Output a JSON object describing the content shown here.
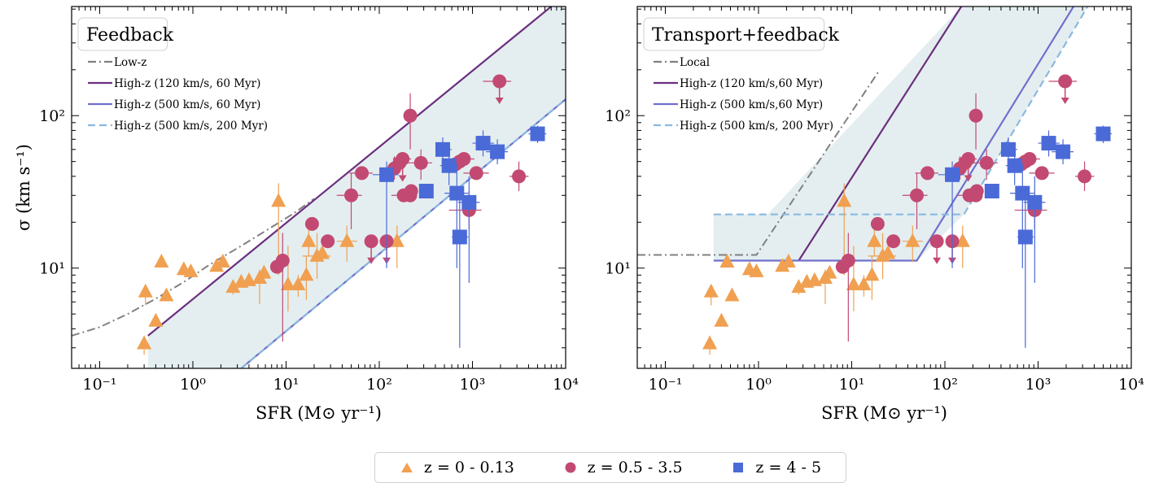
{
  "colors": {
    "low": "#f0a050",
    "mid": "#c24a72",
    "high": "#4a6ad8",
    "gray": "#808080",
    "purple": "#6a2f7e",
    "blue": "#7070cc",
    "lightblue": "#8ab8e0",
    "fill": "#e4eef0"
  },
  "legend": {
    "low": "z = 0 - 0.13",
    "mid": "z = 0.5 - 3.5",
    "high": "z = 4 - 5"
  },
  "chart_data": [
    {
      "type": "scatter",
      "title": "Feedback",
      "xlabel": "SFR (M⊙ yr⁻¹)",
      "ylabel": "σ (km s⁻¹)",
      "xscale": "log",
      "yscale": "log",
      "xlim": [
        0.05,
        10000
      ],
      "ylim": [
        2.2,
        520
      ],
      "xticks": [
        {
          "v": 0.1,
          "label": "10⁻¹"
        },
        {
          "v": 1,
          "label": "10⁰"
        },
        {
          "v": 10,
          "label": "10¹"
        },
        {
          "v": 100,
          "label": "10²"
        },
        {
          "v": 1000,
          "label": "10³"
        },
        {
          "v": 10000,
          "label": "10⁴"
        }
      ],
      "yticks": [
        {
          "v": 10,
          "label": "10¹"
        },
        {
          "v": 100,
          "label": "10²"
        }
      ],
      "legend_entries": [
        {
          "label": "Low-z",
          "style": "dashdot",
          "color": "gray"
        },
        {
          "label": "High-z (120 km/s, 60 Myr)",
          "style": "solid",
          "color": "purple"
        },
        {
          "label": "High-z (500 km/s, 60 Myr)",
          "style": "solid",
          "color": "blue"
        },
        {
          "label": "High-z (500 km/s, 200 Myr)",
          "style": "dashed",
          "color": "lightblue"
        }
      ],
      "models": [
        {
          "color": "gray",
          "style": "dashdot",
          "points": [
            [
              0.05,
              3.6
            ],
            [
              0.1,
              4.1
            ],
            [
              0.2,
              5.0
            ],
            [
              0.4,
              6.3
            ],
            [
              0.8,
              8.1
            ],
            [
              1.5,
              10.5
            ],
            [
              3,
              13.5
            ],
            [
              6,
              17.5
            ],
            [
              12,
              22.8
            ],
            [
              20,
              28.5
            ]
          ]
        },
        {
          "color": "purple",
          "style": "solid",
          "points": [
            [
              0.33,
              3.6
            ],
            [
              7000,
              520
            ]
          ]
        },
        {
          "color": "blue",
          "style": "solid",
          "points": [
            [
              3.3,
              2.2
            ],
            [
              10000,
              128
            ]
          ]
        },
        {
          "color": "lightblue",
          "style": "dashed",
          "points": [
            [
              3.3,
              2.2
            ],
            [
              10000,
              128
            ]
          ]
        }
      ],
      "shade": [
        [
          0.33,
          2.2
        ],
        [
          0.33,
          3.6
        ],
        [
          7000,
          520
        ],
        [
          10000,
          520
        ],
        [
          10000,
          128
        ],
        [
          3.3,
          2.2
        ]
      ]
    },
    {
      "type": "scatter",
      "title": "Transport+feedback",
      "xlabel": "SFR (M⊙ yr⁻¹)",
      "ylabel": "",
      "xscale": "log",
      "yscale": "log",
      "xlim": [
        0.05,
        10000
      ],
      "ylim": [
        2.2,
        520
      ],
      "xticks": [
        {
          "v": 0.1,
          "label": "10⁻¹"
        },
        {
          "v": 1,
          "label": "10⁰"
        },
        {
          "v": 10,
          "label": "10¹"
        },
        {
          "v": 100,
          "label": "10²"
        },
        {
          "v": 1000,
          "label": "10³"
        },
        {
          "v": 10000,
          "label": "10⁴"
        }
      ],
      "yticks": [
        {
          "v": 10,
          "label": "10¹"
        },
        {
          "v": 100,
          "label": "10²"
        }
      ],
      "legend_entries": [
        {
          "label": "Local",
          "style": "dashdot",
          "color": "gray"
        },
        {
          "label": "High-z (120 km/s,60 Myr)",
          "style": "solid",
          "color": "purple"
        },
        {
          "label": "High-z (500 km/s,60 Myr)",
          "style": "solid",
          "color": "blue"
        },
        {
          "label": "High-z (500 km/s, 200 Myr)",
          "style": "dashed",
          "color": "lightblue"
        }
      ],
      "models": [
        {
          "color": "gray",
          "style": "dashdot",
          "points": [
            [
              0.05,
              12.2
            ],
            [
              0.95,
              12.2
            ],
            [
              20,
              200
            ]
          ]
        },
        {
          "color": "purple",
          "style": "solid",
          "points": [
            [
              2.7,
              11.2
            ],
            [
              150,
              520
            ]
          ]
        },
        {
          "color": "blue",
          "style": "solid",
          "points": [
            [
              0.33,
              11.2
            ],
            [
              50,
              11.2
            ],
            [
              2400,
              520
            ]
          ]
        },
        {
          "color": "lightblue",
          "style": "dashed",
          "points": [
            [
              0.33,
              22.5
            ],
            [
              160,
              22.5
            ],
            [
              3400,
              520
            ]
          ]
        }
      ],
      "shade": [
        [
          0.33,
          11.2
        ],
        [
          0.33,
          22.5
        ],
        [
          1.25,
          22.5
        ],
        [
          150,
          520
        ],
        [
          3400,
          520
        ],
        [
          160,
          22.5
        ],
        [
          50,
          11.2
        ]
      ]
    }
  ],
  "points": {
    "low": [
      {
        "x": 0.3,
        "y": 3.2,
        "yerr": [
          2.7,
          3.6
        ]
      },
      {
        "x": 0.31,
        "y": 7.0,
        "yerr": [
          5.7,
          7.6
        ]
      },
      {
        "x": 0.4,
        "y": 4.5
      },
      {
        "x": 0.46,
        "y": 11.0
      },
      {
        "x": 0.52,
        "y": 6.6
      },
      {
        "x": 0.8,
        "y": 9.8
      },
      {
        "x": 0.95,
        "y": 9.5
      },
      {
        "x": 1.8,
        "y": 10.3
      },
      {
        "x": 2.1,
        "y": 11.0
      },
      {
        "x": 2.7,
        "y": 7.5,
        "yerr": [
          6.7,
          8.4
        ]
      },
      {
        "x": 3.3,
        "y": 8.1
      },
      {
        "x": 4.0,
        "y": 8.3
      },
      {
        "x": 5.2,
        "y": 8.6,
        "yerr": [
          5.8,
          9.8
        ]
      },
      {
        "x": 5.8,
        "y": 9.3
      },
      {
        "x": 8.3,
        "y": 27.5,
        "yerr": [
          9,
          36
        ]
      },
      {
        "x": 10.5,
        "y": 7.8,
        "yerr": [
          5.2,
          14
        ]
      },
      {
        "x": 13.5,
        "y": 7.8,
        "yerr": [
          6.5,
          9
        ]
      },
      {
        "x": 16.5,
        "y": 9.0,
        "yerr": [
          6.2,
          12
        ]
      },
      {
        "x": 17.5,
        "y": 15.0,
        "yerr": [
          12,
          18
        ]
      },
      {
        "x": 21.5,
        "y": 12.0,
        "xerr": [
          15,
          30
        ],
        "yerr": [
          8.5,
          17
        ]
      },
      {
        "x": 24.5,
        "y": 12.5
      },
      {
        "x": 45,
        "y": 15.0,
        "xerr": [
          35,
          58
        ],
        "yerr": [
          11,
          19
        ]
      },
      {
        "x": 155,
        "y": 15.0,
        "yerr": [
          10,
          19
        ]
      }
    ],
    "mid": [
      {
        "x": 8.0,
        "y": 10.2
      },
      {
        "x": 9.2,
        "y": 11.2,
        "yerr": [
          3.3,
          17
        ]
      },
      {
        "x": 19,
        "y": 19.5
      },
      {
        "x": 28,
        "y": 15.0
      },
      {
        "x": 50,
        "y": 30.0,
        "xerr": [
          35,
          65
        ],
        "yerr": [
          18,
          42
        ]
      },
      {
        "x": 65,
        "y": 42.0,
        "xerr": [
          48,
          85
        ]
      },
      {
        "x": 82,
        "y": 15.0,
        "uplim": true
      },
      {
        "x": 120,
        "y": 15.0,
        "uplim": true
      },
      {
        "x": 145,
        "y": 45.0,
        "xerr": [
          110,
          180
        ],
        "yerr": [
          38,
          54
        ]
      },
      {
        "x": 165,
        "y": 49.0
      },
      {
        "x": 178,
        "y": 52.0,
        "xerr": [
          140,
          220
        ],
        "uplim": true
      },
      {
        "x": 183,
        "y": 30.0,
        "xerr": [
          135,
          240
        ]
      },
      {
        "x": 215,
        "y": 30.0
      },
      {
        "x": 220,
        "y": 32.0
      },
      {
        "x": 215,
        "y": 100.0,
        "yerr": [
          60,
          140
        ]
      },
      {
        "x": 280,
        "y": 49.0,
        "xerr": [
          200,
          370
        ],
        "yerr": [
          38,
          60
        ]
      },
      {
        "x": 660,
        "y": 48.0
      },
      {
        "x": 730,
        "y": 50.0
      },
      {
        "x": 810,
        "y": 52.0,
        "xerr": [
          630,
          1050
        ]
      },
      {
        "x": 920,
        "y": 24.0,
        "xerr": [
          560,
          1250
        ],
        "yerr": [
          18,
          32
        ]
      },
      {
        "x": 1100,
        "y": 42.0,
        "xerr": [
          800,
          1500
        ]
      },
      {
        "x": 1950,
        "y": 168.0,
        "xerr": [
          1300,
          2600
        ],
        "uplim": true
      },
      {
        "x": 3150,
        "y": 40.0,
        "xerr": [
          2500,
          4000
        ],
        "yerr": [
          32,
          50
        ]
      }
    ],
    "high": [
      {
        "x": 120,
        "y": 41.0,
        "xerr": [
          85,
          160
        ],
        "yerr": [
          10,
          50
        ]
      },
      {
        "x": 320,
        "y": 32.0
      },
      {
        "x": 480,
        "y": 60.0,
        "xerr": [
          400,
          600
        ],
        "yerr": [
          50,
          72
        ]
      },
      {
        "x": 560,
        "y": 47.0,
        "xerr": [
          450,
          700
        ],
        "yerr": [
          35,
          58
        ]
      },
      {
        "x": 680,
        "y": 31.0,
        "xerr": [
          500,
          900
        ],
        "yerr": [
          10,
          48
        ]
      },
      {
        "x": 730,
        "y": 16.0,
        "xerr": [
          600,
          900
        ],
        "yerr": [
          3,
          30
        ]
      },
      {
        "x": 920,
        "y": 27.0,
        "xerr": [
          700,
          1200
        ],
        "yerr": [
          8,
          40
        ]
      },
      {
        "x": 1300,
        "y": 66.0,
        "xerr": [
          1000,
          1700
        ],
        "yerr": [
          54,
          80
        ]
      },
      {
        "x": 1850,
        "y": 58.0,
        "xerr": [
          1400,
          2400
        ],
        "yerr": [
          48,
          70
        ]
      },
      {
        "x": 5000,
        "y": 76.0,
        "xerr": [
          4000,
          6200
        ],
        "yerr": [
          66,
          86
        ]
      }
    ]
  }
}
